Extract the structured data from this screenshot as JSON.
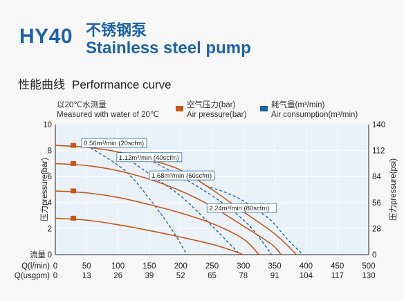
{
  "header": {
    "model": "HY40",
    "title_cn": "不锈钢泵",
    "title_en": "Stainless steel pump",
    "section_cn": "性能曲线",
    "section_en": "Performance curve"
  },
  "note": {
    "line1": "以20℃水测量",
    "line2": "Measured with water of 20℃"
  },
  "legend": {
    "air_cn": "空气压力(bar)",
    "air_en": "Air pressure(bar)",
    "air_color": "#c8561c",
    "cons_cn": "耗气量(m³/min)",
    "cons_en": "Air consumption(m³/min)",
    "cons_color": "#1d62a8"
  },
  "chart_data": {
    "type": "line",
    "x_axis": {
      "label_cn": "流量",
      "row1_label": "Q(l/min)",
      "row1_ticks": [
        "0",
        "50",
        "100",
        "150",
        "200",
        "250",
        "300",
        "350",
        "400",
        "450",
        "500"
      ],
      "row2_label": "Q(usgpm)",
      "row2_ticks": [
        "0",
        "13",
        "26",
        "39",
        "52",
        "65",
        "78",
        "91",
        "104",
        "117",
        "130"
      ],
      "xlim": [
        0,
        500
      ]
    },
    "y_left": {
      "label": "压力pressure(bar)",
      "ticks": [
        "0",
        "2",
        "4",
        "6",
        "8",
        "10"
      ],
      "ylim": [
        0,
        10
      ]
    },
    "y_right": {
      "label": "压力pressure(psi)",
      "ticks": [
        "0",
        "28",
        "56",
        "84",
        "112",
        "140"
      ],
      "ylim": [
        0,
        140
      ]
    },
    "grid": true,
    "pressure_series": [
      {
        "start_value": 8.4,
        "points": [
          [
            0,
            8.4
          ],
          [
            50,
            8.25
          ],
          [
            100,
            7.9
          ],
          [
            150,
            7.3
          ],
          [
            200,
            6.5
          ],
          [
            250,
            5.0
          ],
          [
            300,
            3.3
          ],
          [
            350,
            1.6
          ],
          [
            385,
            0
          ]
        ]
      },
      {
        "start_value": 7.0,
        "points": [
          [
            0,
            7.0
          ],
          [
            50,
            6.85
          ],
          [
            100,
            6.45
          ],
          [
            150,
            5.8
          ],
          [
            200,
            4.9
          ],
          [
            250,
            3.7
          ],
          [
            300,
            2.2
          ],
          [
            345,
            0.8
          ],
          [
            360,
            0
          ]
        ]
      },
      {
        "start_value": 4.9,
        "points": [
          [
            0,
            4.9
          ],
          [
            50,
            4.75
          ],
          [
            100,
            4.4
          ],
          [
            150,
            3.85
          ],
          [
            200,
            3.2
          ],
          [
            250,
            2.4
          ],
          [
            300,
            1.2
          ],
          [
            325,
            0
          ]
        ]
      },
      {
        "start_value": 2.8,
        "points": [
          [
            0,
            2.8
          ],
          [
            50,
            2.65
          ],
          [
            100,
            2.3
          ],
          [
            150,
            1.85
          ],
          [
            200,
            1.35
          ],
          [
            250,
            0.8
          ],
          [
            280,
            0.35
          ],
          [
            300,
            0
          ]
        ]
      }
    ],
    "consumption_series": [
      {
        "label": "0.56m³/min (20scfm)",
        "points": [
          [
            50,
            8.4
          ],
          [
            110,
            6.5
          ],
          [
            150,
            4.3
          ],
          [
            185,
            2.0
          ],
          [
            210,
            0
          ]
        ]
      },
      {
        "label": "1.12m³/min (40scfm)",
        "points": [
          [
            100,
            7.9
          ],
          [
            150,
            6.2
          ],
          [
            200,
            4.5
          ],
          [
            250,
            2.2
          ],
          [
            295,
            0
          ]
        ]
      },
      {
        "label": "1.68m³/min (60scfm)",
        "points": [
          [
            150,
            7.3
          ],
          [
            200,
            6.0
          ],
          [
            260,
            4.2
          ],
          [
            310,
            2.2
          ],
          [
            345,
            0
          ]
        ]
      },
      {
        "label": "2.24m³/min (80scfm)",
        "points": [
          [
            240,
            5.3
          ],
          [
            290,
            4.4
          ],
          [
            340,
            2.8
          ],
          [
            370,
            1.2
          ],
          [
            395,
            0
          ]
        ]
      }
    ]
  }
}
